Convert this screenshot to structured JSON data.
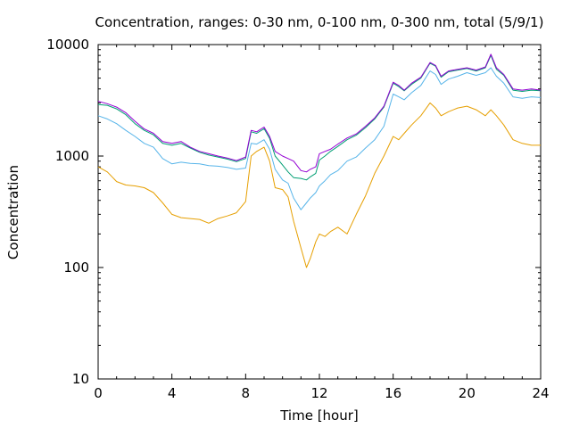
{
  "chart_data": {
    "type": "line",
    "title": "Concentration, ranges: 0-30 nm, 0-100 nm, 0-300 nm, total (5/9/1)",
    "xlabel": "Time [hour]",
    "ylabel": "Concentration",
    "xlim": [
      0,
      24
    ],
    "ylim": [
      10,
      10000
    ],
    "yscale": "log",
    "grid": false,
    "legend": "none",
    "x_ticks": [
      0,
      4,
      8,
      12,
      16,
      20,
      24
    ],
    "x_tick_labels": [
      "0",
      "4",
      "8",
      "12",
      "16",
      "20",
      "24"
    ],
    "y_ticks": [
      10,
      100,
      1000,
      10000
    ],
    "y_tick_labels": [
      "10",
      "100",
      "1000",
      "10000"
    ],
    "series": [
      {
        "color": "#9400d3",
        "x": [
          0,
          0.5,
          1,
          1.5,
          2,
          2.5,
          3,
          3.5,
          4,
          4.5,
          5,
          5.5,
          6,
          6.5,
          7,
          7.5,
          8,
          8.3,
          8.6,
          9,
          9.3,
          9.6,
          10,
          10.3,
          10.6,
          11,
          11.3,
          11.5,
          11.8,
          12,
          12.3,
          12.6,
          13,
          13.5,
          14,
          14.5,
          15,
          15.5,
          16,
          16.3,
          16.6,
          17,
          17.5,
          18,
          18.3,
          18.6,
          19,
          19.5,
          20,
          20.5,
          21,
          21.3,
          21.6,
          22,
          22.5,
          23,
          23.5,
          24
        ],
        "y": [
          3100,
          2950,
          2750,
          2450,
          2050,
          1750,
          1600,
          1350,
          1300,
          1350,
          1200,
          1100,
          1050,
          1000,
          960,
          910,
          980,
          1700,
          1650,
          1820,
          1500,
          1100,
          1000,
          950,
          900,
          740,
          720,
          760,
          800,
          1050,
          1100,
          1150,
          1280,
          1450,
          1580,
          1850,
          2200,
          2800,
          4600,
          4300,
          3900,
          4500,
          5100,
          6900,
          6500,
          5200,
          5800,
          6000,
          6200,
          5900,
          6300,
          8200,
          6200,
          5400,
          4000,
          3900,
          4000,
          3900
        ]
      },
      {
        "color": "#009e73",
        "x": [
          0,
          0.5,
          1,
          1.5,
          2,
          2.5,
          3,
          3.5,
          4,
          4.5,
          5,
          5.5,
          6,
          6.5,
          7,
          7.5,
          8,
          8.3,
          8.6,
          9,
          9.3,
          9.6,
          10,
          10.3,
          10.6,
          11,
          11.3,
          11.5,
          11.8,
          12,
          12.3,
          12.6,
          13,
          13.5,
          14,
          14.5,
          15,
          15.5,
          16,
          16.3,
          16.6,
          17,
          17.5,
          18,
          18.3,
          18.6,
          19,
          19.5,
          20,
          20.5,
          21,
          21.3,
          21.6,
          22,
          22.5,
          23,
          23.5,
          24
        ],
        "y": [
          2900,
          2850,
          2650,
          2350,
          1950,
          1700,
          1550,
          1300,
          1250,
          1300,
          1180,
          1080,
          1020,
          980,
          940,
          890,
          950,
          1650,
          1600,
          1760,
          1440,
          1000,
          830,
          720,
          640,
          630,
          610,
          650,
          700,
          920,
          1000,
          1100,
          1220,
          1400,
          1540,
          1800,
          2150,
          2750,
          4500,
          4200,
          3850,
          4400,
          5000,
          6800,
          6400,
          5100,
          5700,
          5900,
          6100,
          5800,
          6200,
          8000,
          6000,
          5300,
          3900,
          3800,
          3900,
          3850
        ]
      },
      {
        "color": "#56b4e9",
        "x": [
          0,
          0.5,
          1,
          1.5,
          2,
          2.5,
          3,
          3.5,
          4,
          4.5,
          5,
          5.5,
          6,
          6.5,
          7,
          7.5,
          8,
          8.3,
          8.6,
          9,
          9.3,
          9.6,
          10,
          10.3,
          10.6,
          11,
          11.3,
          11.5,
          11.8,
          12,
          12.3,
          12.6,
          13,
          13.5,
          14,
          14.5,
          15,
          15.5,
          16,
          16.3,
          16.6,
          17,
          17.5,
          18,
          18.3,
          18.6,
          19,
          19.5,
          20,
          20.5,
          21,
          21.3,
          21.6,
          22,
          22.5,
          23,
          23.5,
          24
        ],
        "y": [
          2300,
          2150,
          1950,
          1700,
          1500,
          1300,
          1200,
          950,
          850,
          880,
          860,
          850,
          820,
          810,
          790,
          760,
          780,
          1300,
          1280,
          1400,
          1150,
          760,
          610,
          570,
          420,
          330,
          380,
          420,
          470,
          540,
          600,
          680,
          740,
          900,
          980,
          1180,
          1400,
          1850,
          3600,
          3400,
          3200,
          3700,
          4300,
          5800,
          5400,
          4400,
          4900,
          5200,
          5600,
          5300,
          5600,
          6200,
          5200,
          4500,
          3400,
          3300,
          3400,
          3350
        ]
      },
      {
        "color": "#e69f00",
        "x": [
          0,
          0.5,
          1,
          1.5,
          2,
          2.5,
          3,
          3.5,
          4,
          4.5,
          5,
          5.5,
          6,
          6.5,
          7,
          7.5,
          8,
          8.3,
          8.6,
          9,
          9.3,
          9.6,
          10,
          10.3,
          10.6,
          11,
          11.3,
          11.5,
          11.8,
          12,
          12.3,
          12.6,
          13,
          13.5,
          14,
          14.5,
          15,
          15.5,
          16,
          16.3,
          16.6,
          17,
          17.5,
          18,
          18.3,
          18.6,
          19,
          19.5,
          20,
          20.5,
          21,
          21.3,
          21.6,
          22,
          22.5,
          23,
          23.5,
          24
        ],
        "y": [
          800,
          720,
          590,
          550,
          540,
          520,
          470,
          380,
          300,
          280,
          275,
          270,
          250,
          275,
          290,
          310,
          390,
          1000,
          1100,
          1200,
          900,
          520,
          500,
          430,
          260,
          150,
          100,
          120,
          170,
          200,
          190,
          210,
          230,
          200,
          300,
          440,
          700,
          1000,
          1500,
          1400,
          1600,
          1900,
          2300,
          3000,
          2700,
          2300,
          2500,
          2700,
          2800,
          2600,
          2300,
          2600,
          2300,
          1900,
          1400,
          1300,
          1250,
          1250
        ]
      }
    ]
  }
}
